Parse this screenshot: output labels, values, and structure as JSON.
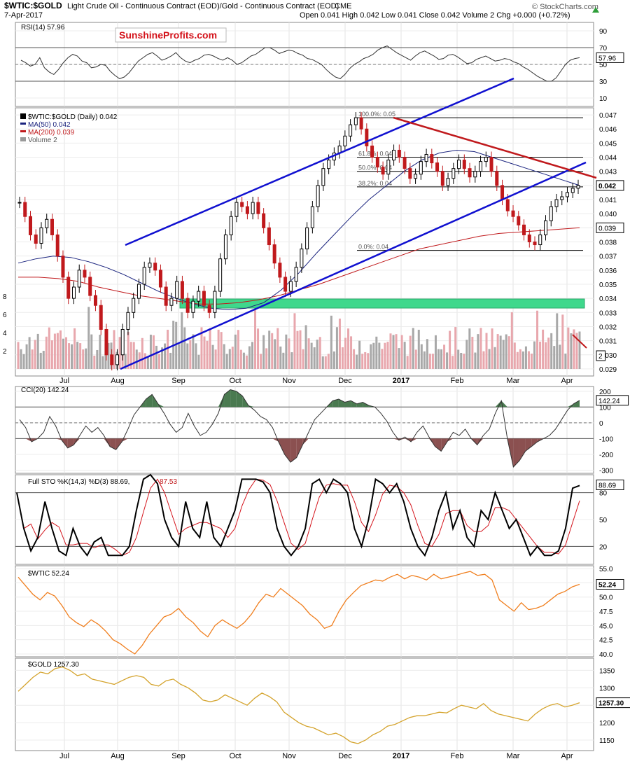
{
  "header": {
    "symbol": "$WTIC:$GOLD",
    "description": "Light Crude Oil - Continuous Contract (EOD)/Gold - Continuous Contract (EOD)",
    "exchange": "CME",
    "date": "7-Apr-2017",
    "ohlc": "Open 0.041  High 0.042  Low 0.041  Close 0.042  Volume 2  Chg +0.000 (+0.72%)",
    "copyright": "© StockCharts.com",
    "arrow_color": "#2e9e3a"
  },
  "watermark": "SunshineProfits.com",
  "x_axis": {
    "months": [
      "Jul",
      "Aug",
      "Sep",
      "Oct",
      "Nov",
      "Dec",
      "2017",
      "Feb",
      "Mar",
      "Apr"
    ]
  },
  "colors": {
    "channel": "#1010d0",
    "resistance": "#c0191c",
    "ma50": "#1a237e",
    "ma200": "#c0191c",
    "candle_up": "#000000",
    "candle_down": "#c0191c",
    "volume_up": "#a8a8a8",
    "volume_down": "#e8a7ad",
    "support_zone": "#3fd88c",
    "oil": "#f07f1f",
    "gold": "#d4a32c",
    "cci_pos": "#4a7a50",
    "cci_neg": "#8b5050",
    "rsi_fill": "#8b5050"
  },
  "chart_data": [
    {
      "type": "line",
      "panel": "rsi",
      "title": "RSI(14) 57.96",
      "last_value": "57.96",
      "yticks": [
        "90",
        "70",
        "50",
        "30",
        "10"
      ],
      "ylim": [
        0,
        100
      ],
      "levels": [
        70,
        30
      ],
      "values": [
        55,
        52,
        48,
        50,
        58,
        46,
        41,
        38,
        44,
        52,
        58,
        62,
        60,
        54,
        52,
        46,
        47,
        50,
        49,
        42,
        37,
        33,
        35,
        40,
        47,
        54,
        58,
        62,
        64,
        60,
        55,
        57,
        60,
        64,
        58,
        54,
        52,
        55,
        57,
        61,
        62,
        60,
        57,
        55,
        58,
        55,
        50,
        52,
        56,
        60,
        62,
        66,
        70,
        70,
        67,
        63,
        65,
        67,
        66,
        63,
        61,
        57,
        56,
        53,
        50,
        44,
        39,
        35,
        33,
        38,
        45,
        50,
        53,
        57,
        59,
        62,
        67,
        70,
        72,
        68,
        64,
        61,
        58,
        55,
        60,
        64,
        66,
        63,
        60,
        56,
        57,
        61,
        62,
        59,
        55,
        51,
        52,
        56,
        58,
        60,
        57,
        54,
        55,
        57,
        56,
        53,
        51,
        47,
        44,
        40,
        36,
        33,
        30,
        30,
        34,
        42,
        50,
        55,
        57,
        58
      ]
    },
    {
      "type": "line",
      "panel": "price",
      "title": "$WTIC:$GOLD (Daily) 0.042",
      "series": [
        {
          "name": "$WTIC:$GOLD (Daily) 0.042",
          "last": "0.042"
        },
        {
          "name": "MA(50) 0.042",
          "last": "0.042"
        },
        {
          "name": "MA(200) 0.039",
          "last": "0.039"
        },
        {
          "name": "Volume 2",
          "last": "2"
        }
      ],
      "yticks": [
        "0.047",
        "0.046",
        "0.045",
        "0.044",
        "0.043",
        "0.042",
        "0.041",
        "0.040",
        "0.039",
        "0.038",
        "0.037",
        "0.036",
        "0.035",
        "0.034",
        "0.033",
        "0.032",
        "0.031",
        "0.030",
        "0.029"
      ],
      "ylim": [
        0.0285,
        0.0475
      ],
      "volume_ticks": [
        "8",
        "6",
        "4",
        "2"
      ],
      "fib_levels": [
        {
          "label": "100.0%: 0.05",
          "value": 0.0468
        },
        {
          "label": "61.8%: 0.04",
          "value": 0.044
        },
        {
          "label": "50.0%: 0.04",
          "value": 0.043
        },
        {
          "label": "38.2%: 0.04",
          "value": 0.0419
        },
        {
          "label": "0.0%: 0.04",
          "value": 0.0374
        }
      ],
      "close": [
        0.0408,
        0.0398,
        0.0385,
        0.0379,
        0.039,
        0.0396,
        0.0385,
        0.037,
        0.0355,
        0.034,
        0.0348,
        0.036,
        0.0355,
        0.0342,
        0.0335,
        0.0318,
        0.03,
        0.0293,
        0.03,
        0.0318,
        0.033,
        0.034,
        0.035,
        0.0362,
        0.0365,
        0.036,
        0.0348,
        0.0335,
        0.034,
        0.0352,
        0.034,
        0.033,
        0.0338,
        0.0345,
        0.0335,
        0.033,
        0.0345,
        0.0368,
        0.0385,
        0.0398,
        0.0408,
        0.0405,
        0.04,
        0.0408,
        0.04,
        0.039,
        0.0378,
        0.0365,
        0.0355,
        0.0345,
        0.0352,
        0.0362,
        0.0375,
        0.039,
        0.0405,
        0.042,
        0.0432,
        0.0438,
        0.0443,
        0.0448,
        0.0455,
        0.0463,
        0.0468,
        0.046,
        0.0448,
        0.044,
        0.0433,
        0.0428,
        0.0438,
        0.0445,
        0.044,
        0.0432,
        0.0425,
        0.0428,
        0.0437,
        0.0442,
        0.0436,
        0.043,
        0.042,
        0.0425,
        0.0432,
        0.0438,
        0.0432,
        0.0426,
        0.043,
        0.0437,
        0.044,
        0.043,
        0.042,
        0.041,
        0.0402,
        0.0398,
        0.0392,
        0.0385,
        0.038,
        0.0378,
        0.0385,
        0.0395,
        0.0405,
        0.041,
        0.0412,
        0.0415,
        0.0418,
        0.042
      ],
      "ma50": [
        0.0365,
        0.0368,
        0.037,
        0.0369,
        0.0366,
        0.0362,
        0.0357,
        0.0351,
        0.0345,
        0.034,
        0.0336,
        0.0333,
        0.0332,
        0.0333,
        0.0337,
        0.0346,
        0.0358,
        0.0372,
        0.0385,
        0.0398,
        0.041,
        0.042,
        0.043,
        0.0438,
        0.0443,
        0.0445,
        0.0444,
        0.044,
        0.0436,
        0.0432,
        0.0428,
        0.0424,
        0.042
      ],
      "ma200": [
        0.0355,
        0.0355,
        0.0354,
        0.0352,
        0.0348,
        0.0345,
        0.0342,
        0.034,
        0.0338,
        0.0336,
        0.0336,
        0.0337,
        0.0339,
        0.0342,
        0.0346,
        0.035,
        0.0355,
        0.036,
        0.0365,
        0.037,
        0.0375,
        0.0378,
        0.0381,
        0.0384,
        0.0386,
        0.0387,
        0.0388,
        0.0389,
        0.039
      ]
    },
    {
      "type": "area",
      "panel": "cci",
      "title": "CCI(20) 142.24",
      "last_value": "142.24",
      "yticks": [
        "200",
        "100",
        "0",
        "-100",
        "-200",
        "-300"
      ],
      "ylim": [
        -320,
        230
      ],
      "values": [
        20,
        -30,
        -120,
        -100,
        -60,
        40,
        -20,
        -110,
        -160,
        -140,
        -80,
        -20,
        -60,
        -30,
        -80,
        -150,
        -170,
        -120,
        -40,
        50,
        100,
        150,
        180,
        120,
        60,
        -10,
        -60,
        -30,
        60,
        -20,
        -80,
        -60,
        -10,
        60,
        180,
        210,
        200,
        170,
        110,
        80,
        40,
        20,
        -30,
        -120,
        -200,
        -250,
        -220,
        -140,
        -60,
        20,
        60,
        100,
        140,
        150,
        130,
        140,
        120,
        130,
        110,
        100,
        60,
        10,
        -60,
        -110,
        -90,
        -120,
        -60,
        -20,
        -90,
        -150,
        -180,
        -120,
        -60,
        -80,
        -40,
        -100,
        -140,
        -80,
        -40,
        60,
        140,
        -100,
        -280,
        -240,
        -180,
        -150,
        -120,
        -100,
        -80,
        -40,
        20,
        80,
        120,
        142
      ]
    },
    {
      "type": "line",
      "panel": "sto",
      "title": "Full STO %K(14,3) %D(3) 88.69, 87.53",
      "k_label": "Full STO %K(14,3) %D(3) 88.69,",
      "d_label": "87.53",
      "last_value": "88.69",
      "yticks": [
        "80",
        "50",
        "20"
      ],
      "ylim": [
        0,
        100
      ],
      "k_values": [
        80,
        40,
        15,
        30,
        70,
        40,
        15,
        10,
        40,
        20,
        10,
        25,
        30,
        10,
        10,
        10,
        20,
        60,
        95,
        100,
        90,
        50,
        30,
        20,
        70,
        40,
        30,
        70,
        30,
        20,
        40,
        60,
        95,
        95,
        95,
        92,
        80,
        40,
        20,
        10,
        20,
        40,
        90,
        95,
        80,
        95,
        90,
        80,
        40,
        20,
        50,
        95,
        90,
        80,
        90,
        70,
        40,
        20,
        10,
        30,
        60,
        80,
        40,
        60,
        30,
        20,
        60,
        50,
        80,
        60,
        40,
        50,
        30,
        10,
        20,
        10,
        10,
        15,
        40,
        85,
        88
      ]
    },
    {
      "type": "line",
      "panel": "wtic",
      "title": "$WTIC 52.24",
      "series": [
        {
          "name": "$WTIC 52.24",
          "last": "52.24"
        }
      ],
      "yticks": [
        "55.0",
        "52.5",
        "50.0",
        "47.5",
        "45.0",
        "42.5",
        "40.0"
      ],
      "ylim": [
        39.5,
        55.5
      ],
      "values": [
        53.5,
        52.0,
        50.5,
        49.5,
        50.8,
        50.2,
        48.5,
        46.5,
        45.5,
        44.8,
        46.0,
        45.2,
        44.0,
        42.5,
        41.8,
        40.8,
        40.0,
        41.5,
        43.5,
        45.0,
        46.5,
        47.0,
        48.0,
        46.5,
        45.5,
        44.0,
        43.0,
        45.0,
        46.0,
        45.2,
        44.5,
        45.5,
        47.0,
        49.0,
        50.5,
        50.0,
        51.5,
        50.5,
        49.5,
        48.5,
        47.0,
        46.0,
        44.5,
        45.0,
        47.5,
        49.5,
        50.8,
        52.0,
        52.5,
        53.0,
        52.8,
        53.5,
        54.0,
        53.2,
        53.8,
        53.5,
        53.0,
        54.0,
        53.2,
        53.5,
        53.8,
        54.2,
        54.5,
        53.8,
        54.0,
        53.0,
        49.5,
        48.5,
        47.5,
        49.0,
        47.8,
        48.0,
        48.5,
        49.5,
        50.5,
        51.0,
        51.8,
        52.24
      ]
    },
    {
      "type": "line",
      "panel": "gold",
      "title": "$GOLD 1257.30",
      "series": [
        {
          "name": "$GOLD 1257.30",
          "last": "1257.30"
        }
      ],
      "yticks": [
        "1350",
        "1300",
        "1250",
        "1200",
        "1150"
      ],
      "ylim": [
        1120,
        1385
      ],
      "values": [
        1290,
        1310,
        1330,
        1345,
        1340,
        1355,
        1360,
        1350,
        1335,
        1340,
        1325,
        1320,
        1315,
        1310,
        1320,
        1330,
        1335,
        1330,
        1310,
        1305,
        1320,
        1325,
        1310,
        1300,
        1285,
        1265,
        1260,
        1265,
        1280,
        1270,
        1260,
        1250,
        1270,
        1285,
        1275,
        1260,
        1230,
        1215,
        1200,
        1190,
        1185,
        1175,
        1165,
        1170,
        1160,
        1145,
        1140,
        1150,
        1165,
        1175,
        1190,
        1195,
        1205,
        1215,
        1220,
        1220,
        1225,
        1230,
        1228,
        1240,
        1250,
        1245,
        1240,
        1255,
        1235,
        1225,
        1220,
        1215,
        1210,
        1205,
        1225,
        1240,
        1250,
        1255,
        1245,
        1250,
        1257.3
      ]
    }
  ]
}
